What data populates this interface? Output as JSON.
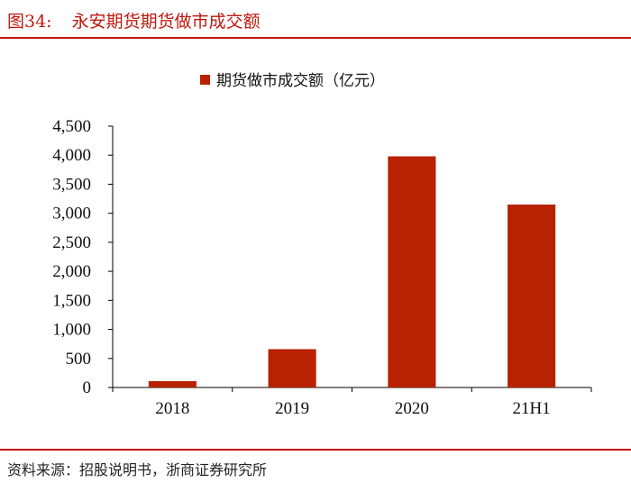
{
  "figure": {
    "number": "图34:",
    "title": "永安期货期货做市成交额",
    "source": "资料来源：招股说明书，浙商证券研究所"
  },
  "colors": {
    "accent": "#c0180c",
    "bar": "#b82200"
  },
  "chart_data": {
    "type": "bar",
    "categories": [
      "2018",
      "2019",
      "2020",
      "21H1"
    ],
    "series": [
      {
        "name": "期货做市成交额（亿元）",
        "values": [
          110,
          660,
          3980,
          3150
        ]
      }
    ],
    "ylim": [
      0,
      4500
    ],
    "yticks": [
      0,
      500,
      1000,
      1500,
      2000,
      2500,
      3000,
      3500,
      4000,
      4500
    ],
    "ytick_labels": [
      "0",
      "500",
      "1,000",
      "1,500",
      "2,000",
      "2,500",
      "3,000",
      "3,500",
      "4,000",
      "4,500"
    ],
    "legend": "top-center",
    "grid": false
  }
}
